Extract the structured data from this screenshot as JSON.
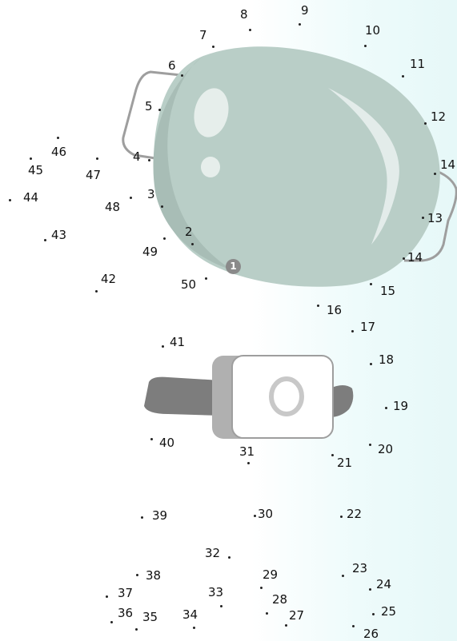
{
  "puzzle": {
    "start_marker": "1",
    "points": [
      {
        "n": 2,
        "label": "2"
      },
      {
        "n": 3,
        "label": "3"
      },
      {
        "n": 4,
        "label": "4"
      },
      {
        "n": 5,
        "label": "5"
      },
      {
        "n": 6,
        "label": "6"
      },
      {
        "n": 7,
        "label": "7"
      },
      {
        "n": 8,
        "label": "8"
      },
      {
        "n": 9,
        "label": "9"
      },
      {
        "n": 10,
        "label": "10"
      },
      {
        "n": 11,
        "label": "11"
      },
      {
        "n": 12,
        "label": "12"
      },
      {
        "n": 13,
        "label": "14",
        "id": "14a"
      },
      {
        "n": 14,
        "label": "13"
      },
      {
        "n": 15,
        "label": "14",
        "id": "14b"
      },
      {
        "n": 16,
        "label": "15"
      },
      {
        "n": 17,
        "label": "16"
      },
      {
        "n": 18,
        "label": "17"
      },
      {
        "n": 19,
        "label": "18"
      },
      {
        "n": 20,
        "label": "19"
      },
      {
        "n": 21,
        "label": "20"
      },
      {
        "n": 22,
        "label": "21"
      },
      {
        "n": 23,
        "label": "22"
      },
      {
        "n": 24,
        "label": "23"
      },
      {
        "n": 25,
        "label": "24"
      },
      {
        "n": 26,
        "label": "25"
      },
      {
        "n": 27,
        "label": "26"
      },
      {
        "n": 28,
        "label": "27"
      },
      {
        "n": 29,
        "label": "28"
      },
      {
        "n": 30,
        "label": "29"
      },
      {
        "n": 31,
        "label": "30"
      },
      {
        "n": 32,
        "label": "31"
      },
      {
        "n": 33,
        "label": "32"
      },
      {
        "n": 34,
        "label": "33"
      },
      {
        "n": 35,
        "label": "34"
      },
      {
        "n": 36,
        "label": "35"
      },
      {
        "n": 37,
        "label": "36"
      },
      {
        "n": 38,
        "label": "37"
      },
      {
        "n": 39,
        "label": "38"
      },
      {
        "n": 40,
        "label": "39"
      },
      {
        "n": 41,
        "label": "40"
      },
      {
        "n": 42,
        "label": "41"
      },
      {
        "n": 43,
        "label": "42"
      },
      {
        "n": 44,
        "label": "43"
      },
      {
        "n": 45,
        "label": "44"
      },
      {
        "n": 46,
        "label": "45"
      },
      {
        "n": 47,
        "label": "46"
      },
      {
        "n": 48,
        "label": "47"
      },
      {
        "n": 49,
        "label": "48"
      },
      {
        "n": 50,
        "label": "49"
      },
      {
        "n": 51,
        "label": "50"
      }
    ]
  },
  "colors": {
    "helmet": "#b9cec7",
    "helmet_shadow": "#a8bdb6",
    "strap_outline": "#9e9e9e",
    "band": "#7d7d7d",
    "buckle_back": "#b0b0b0",
    "buckle_face": "#ffffff",
    "buckle_ring": "#c8c8c8",
    "start_marker": "#8a8a8a"
  },
  "icons": [
    "helmet-shape",
    "chin-strap-buckle"
  ]
}
